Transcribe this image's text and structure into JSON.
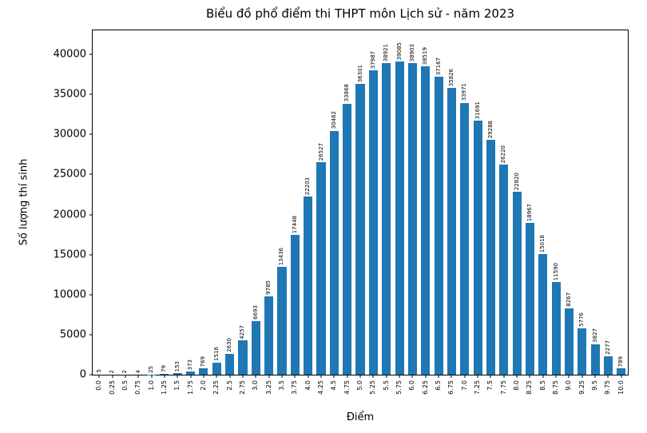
{
  "figure": {
    "background": "#ffffff",
    "axis_color": "#000000"
  },
  "chart_data": {
    "type": "bar",
    "title": "Biểu đồ phổ điểm thi THPT môn Lịch sử - năm 2023",
    "xlabel": "Điểm",
    "ylabel": "Số lượng thí sinh",
    "categories": [
      "0.0",
      "0.25",
      "0.5",
      "0.75",
      "1.0",
      "1.25",
      "1.5",
      "1.75",
      "2.0",
      "2.25",
      "2.5",
      "2.75",
      "3.0",
      "3.25",
      "3.5",
      "3.75",
      "4.0",
      "4.25",
      "4.5",
      "4.75",
      "5.0",
      "5.25",
      "5.5",
      "5.75",
      "6.0",
      "6.25",
      "6.5",
      "6.75",
      "7.0",
      "7.25",
      "7.5",
      "7.75",
      "8.0",
      "8.25",
      "8.5",
      "8.75",
      "9.0",
      "9.25",
      "9.5",
      "9.75",
      "10.0"
    ],
    "values": [
      5,
      2,
      2,
      4,
      25,
      79,
      153,
      373,
      769,
      1516,
      2630,
      4257,
      6693,
      9785,
      13436,
      17448,
      22203,
      26527,
      30462,
      33868,
      36301,
      37987,
      38921,
      39085,
      38903,
      38519,
      37167,
      35826,
      33971,
      31691,
      29288,
      26220,
      22820,
      18967,
      15018,
      11590,
      8267,
      5776,
      3827,
      2277,
      789
    ],
    "ylim": [
      0,
      43000
    ],
    "yticks": [
      0,
      5000,
      10000,
      15000,
      20000,
      25000,
      30000,
      35000,
      40000
    ],
    "bar_color": "#1f77b4",
    "value_labels": true,
    "grid": false
  }
}
